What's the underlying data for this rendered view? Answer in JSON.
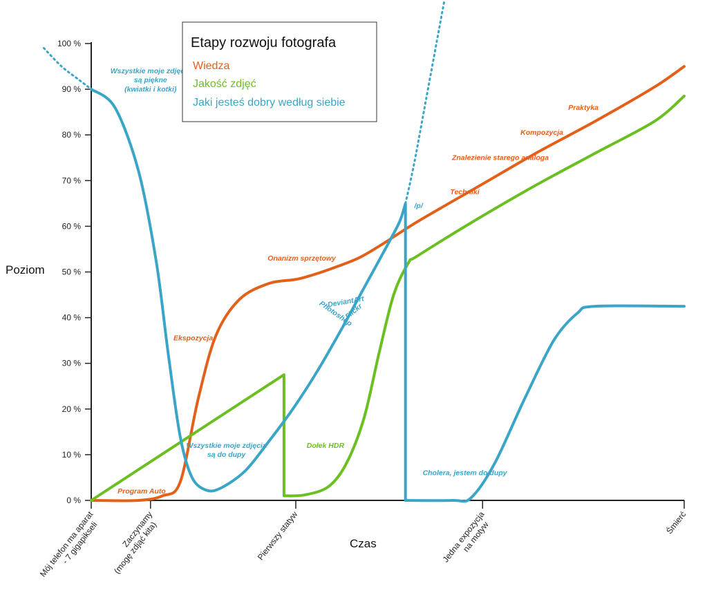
{
  "chart_data": {
    "type": "line",
    "title": "Etapy rozwoju fotografa",
    "xlabel": "Czas",
    "ylabel": "Poziom",
    "ylim": [
      0,
      100
    ],
    "y_ticks": [
      "0 %",
      "10 %",
      "20 %",
      "30 %",
      "40 %",
      "50 %",
      "60 %",
      "70 %",
      "80 %",
      "90 %",
      "100 %"
    ],
    "x_ticks": [
      {
        "lines": [
          "Mój telefon ma aparat",
          "- 7 gigapikseli"
        ]
      },
      {
        "lines": [
          "Zaczynamy",
          "(mogę zdjąć kita)"
        ]
      },
      {
        "lines": [
          "Pierwszy statyw"
        ]
      },
      {
        "lines": [
          "Jedna expozycja",
          "na motyw"
        ]
      },
      {
        "lines": [
          "Śmierć"
        ]
      }
    ],
    "legend_placement": "top-center",
    "series": [
      {
        "name": "Wiedza",
        "color": "#e2601a",
        "points": [
          [
            0,
            0
          ],
          [
            0.8,
            0
          ],
          [
            1.2,
            1
          ],
          [
            1.5,
            4
          ],
          [
            1.8,
            22
          ],
          [
            2.1,
            36
          ],
          [
            2.5,
            44
          ],
          [
            3.0,
            47.5
          ],
          [
            3.5,
            48.5
          ],
          [
            4.0,
            50.5
          ],
          [
            4.5,
            53
          ],
          [
            4.9,
            56
          ],
          [
            5.5,
            61
          ],
          [
            6.5,
            68.5
          ],
          [
            7.5,
            76
          ],
          [
            8.5,
            83
          ],
          [
            9.5,
            90.5
          ],
          [
            10,
            95
          ]
        ]
      },
      {
        "name": "Jakość zdjęć",
        "color": "#6bbf22",
        "points": [
          [
            0,
            0
          ],
          [
            3.25,
            27.5
          ],
          [
            3.25,
            1
          ],
          [
            3.6,
            1.2
          ],
          [
            4.0,
            3
          ],
          [
            4.3,
            8
          ],
          [
            4.6,
            18
          ],
          [
            4.85,
            32
          ],
          [
            5.1,
            45
          ],
          [
            5.35,
            52
          ],
          [
            5.5,
            53.5
          ],
          [
            6.5,
            61.5
          ],
          [
            7.5,
            69
          ],
          [
            8.5,
            76
          ],
          [
            9.5,
            83
          ],
          [
            10,
            88.5
          ]
        ]
      },
      {
        "name": "Jaki jesteś dobry według siebie",
        "color": "#3aa5c7",
        "points": [
          [
            0,
            90
          ],
          [
            0.4,
            86
          ],
          [
            0.8,
            72
          ],
          [
            1.1,
            52
          ],
          [
            1.3,
            32
          ],
          [
            1.5,
            14
          ],
          [
            1.7,
            5
          ],
          [
            1.95,
            2.2
          ],
          [
            2.2,
            2.8
          ],
          [
            2.6,
            6.5
          ],
          [
            3.0,
            13
          ],
          [
            3.4,
            20
          ],
          [
            3.8,
            28
          ],
          [
            4.2,
            37
          ],
          [
            4.6,
            46.5
          ],
          [
            5.0,
            56
          ],
          [
            5.2,
            61
          ],
          [
            5.3,
            65
          ],
          [
            5.3,
            0
          ],
          [
            6.1,
            0
          ],
          [
            6.4,
            0.5
          ],
          [
            6.8,
            8
          ],
          [
            7.3,
            22
          ],
          [
            7.8,
            35
          ],
          [
            8.2,
            41
          ],
          [
            8.5,
            42.5
          ],
          [
            10,
            42.5
          ]
        ],
        "dotted_start": [
          [
            -0.8,
            99
          ],
          [
            -0.5,
            95
          ],
          [
            -0.2,
            92
          ],
          [
            0,
            90
          ]
        ],
        "dotted_end": [
          [
            5.3,
            65
          ],
          [
            5.45,
            74
          ],
          [
            5.65,
            88
          ],
          [
            5.85,
            102
          ],
          [
            5.95,
            109
          ]
        ]
      }
    ],
    "annotations": [
      {
        "text": "Wszystkie moje zdjęcia",
        "series": "Jaki jesteś dobry według siebie",
        "x": 1.0,
        "y": 93.5
      },
      {
        "text": "są piękne",
        "series": "Jaki jesteś dobry według siebie",
        "x": 1.0,
        "y": 91.5
      },
      {
        "text": "(kwiatki i kotki)",
        "series": "Jaki jesteś dobry według siebie",
        "x": 1.0,
        "y": 89.5
      },
      {
        "text": "Wszystkie moje zdjęcia",
        "series": "Jaki jesteś dobry według siebie",
        "x": 2.28,
        "y": 11.5
      },
      {
        "text": "są do dupy",
        "series": "Jaki jesteś dobry według siebie",
        "x": 2.28,
        "y": 9.5
      },
      {
        "text": "Cholera, jestem do dupy",
        "series": "Jaki jesteś dobry według siebie",
        "x": 6.3,
        "y": 5.5
      },
      {
        "text": "/p/",
        "series": "Jaki jesteś dobry według siebie",
        "x": 5.52,
        "y": 64
      },
      {
        "text": "DeviantArt",
        "series": "Jaki jesteś dobry według siebie",
        "x": 4.3,
        "y": 43,
        "rotate": -10
      },
      {
        "text": "Flickr",
        "series": "Jaki jesteś dobry według siebie",
        "x": 4.45,
        "y": 41,
        "rotate": -40
      },
      {
        "text": "Photoshop",
        "series": "Jaki jesteś dobry według siebie",
        "x": 4.1,
        "y": 40.5,
        "rotate": 35
      },
      {
        "text": "Program Auto",
        "series": "Wiedza",
        "x": 0.85,
        "y": 1.5
      },
      {
        "text": "Ekspozycja",
        "series": "Wiedza",
        "x": 1.72,
        "y": 35
      },
      {
        "text": "Onanizm sprzętowy",
        "series": "Wiedza",
        "x": 3.55,
        "y": 52.5
      },
      {
        "text": "Techniki",
        "series": "Wiedza",
        "x": 6.3,
        "y": 67
      },
      {
        "text": "Znalezienie starego analoga",
        "series": "Wiedza",
        "x": 6.9,
        "y": 74.5
      },
      {
        "text": "Kompozycja",
        "series": "Wiedza",
        "x": 7.6,
        "y": 80
      },
      {
        "text": "Praktyka",
        "series": "Wiedza",
        "x": 8.3,
        "y": 85.5
      },
      {
        "text": "Dołek HDR",
        "series": "Jakość zdjęć",
        "x": 3.95,
        "y": 11.5
      }
    ]
  }
}
